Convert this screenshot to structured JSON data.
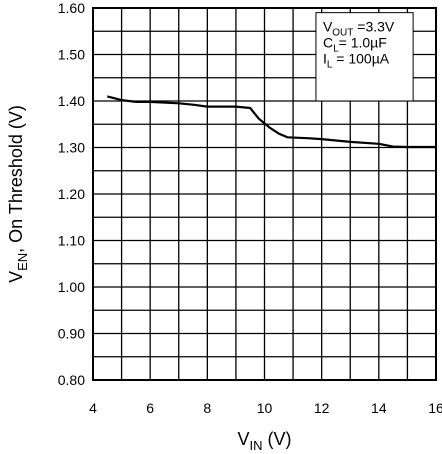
{
  "chart_data": {
    "type": "line",
    "xlabel_main": "V",
    "xlabel_sub": "IN",
    "xlabel_unit": " (V)",
    "ylabel_main": "V",
    "ylabel_sub": "EN",
    "ylabel_rest": ", On Threshold (V)",
    "xlim": [
      4,
      16
    ],
    "ylim": [
      0.8,
      1.6
    ],
    "x_ticks": [
      4,
      6,
      8,
      10,
      12,
      14,
      16
    ],
    "x_tick_labels": [
      "4",
      "6",
      "8",
      "10",
      "12",
      "14",
      "16"
    ],
    "y_ticks": [
      0.8,
      0.9,
      1.0,
      1.1,
      1.2,
      1.3,
      1.4,
      1.5,
      1.6
    ],
    "y_tick_labels": [
      "0.80",
      "0.90",
      "1.00",
      "1.10",
      "1.20",
      "1.30",
      "1.40",
      "1.50",
      "1.60"
    ],
    "x_minor_step": 1,
    "y_minor_step": 0.05,
    "grid": true,
    "annotation": [
      {
        "main": "V",
        "sub": "OUT",
        "rest": " =3.3V"
      },
      {
        "main": "C",
        "sub": "L",
        "rest": "= 1.0µF"
      },
      {
        "main": "I",
        "sub": "L",
        "rest": " = 100µA"
      }
    ],
    "series": [
      {
        "x": [
          4.5,
          5.0,
          5.5,
          6.0,
          7.0,
          7.5,
          8.0,
          9.0,
          9.5,
          9.8,
          10.2,
          10.5,
          10.8,
          11.5,
          12.0,
          13.0,
          14.0,
          14.5,
          15.0,
          16.0
        ],
        "y": [
          1.41,
          1.402,
          1.398,
          1.398,
          1.395,
          1.392,
          1.388,
          1.388,
          1.385,
          1.362,
          1.342,
          1.33,
          1.322,
          1.32,
          1.318,
          1.312,
          1.308,
          1.302,
          1.301,
          1.301
        ]
      }
    ]
  }
}
